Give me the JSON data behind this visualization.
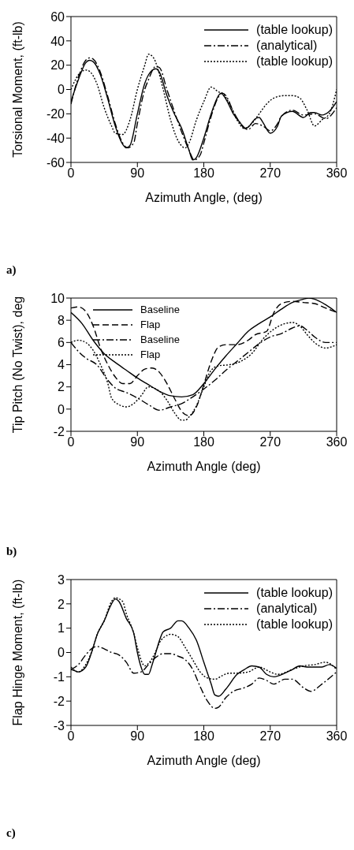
{
  "chart_data": [
    {
      "type": "line",
      "xlabel": "Azimuth Angle, (deg)",
      "ylabel": "Torsional Moment, (ft-lb)",
      "xlim": [
        0,
        360
      ],
      "xticks": [
        0,
        90,
        180,
        270,
        360
      ],
      "ylim": [
        -60,
        60
      ],
      "yticks": [
        -60,
        -40,
        -20,
        0,
        20,
        40,
        60
      ],
      "grid": false,
      "legend": "top right",
      "marker": "none",
      "annotations": [
        "a)"
      ],
      "series": [
        {
          "name": "(table lookup)",
          "color": "#000000",
          "line_style": "solid",
          "x": [
            0,
            10,
            20,
            25,
            30,
            40,
            50,
            60,
            70,
            75,
            80,
            90,
            100,
            105,
            115,
            120,
            130,
            140,
            150,
            160,
            165,
            170,
            180,
            190,
            200,
            203,
            210,
            220,
            230,
            235,
            240,
            250,
            255,
            260,
            270,
            280,
            285,
            300,
            315,
            325,
            330,
            340,
            350,
            360
          ],
          "values": [
            -10,
            8,
            22,
            24,
            23,
            12,
            -8,
            -30,
            -45,
            -48,
            -46,
            -20,
            5,
            12,
            17,
            14,
            -5,
            -20,
            -32,
            -50,
            -58,
            -56,
            -40,
            -20,
            -5,
            -3,
            -8,
            -20,
            -28,
            -32,
            -31,
            -24,
            -23,
            -27,
            -36,
            -30,
            -22,
            -18,
            -23,
            -19,
            -19,
            -21,
            -18,
            -10
          ]
        },
        {
          "name": "(analytical)",
          "color": "#000000",
          "line_style": "dashdot",
          "x": [
            0,
            10,
            20,
            25,
            30,
            40,
            50,
            60,
            70,
            77,
            85,
            90,
            100,
            105,
            115,
            120,
            130,
            140,
            150,
            160,
            167,
            175,
            180,
            190,
            200,
            205,
            210,
            220,
            230,
            240,
            250,
            260,
            270,
            280,
            285,
            300,
            315,
            330,
            345,
            360
          ],
          "values": [
            -12,
            10,
            24,
            26,
            25,
            14,
            -6,
            -28,
            -44,
            -48,
            -44,
            -28,
            0,
            8,
            19,
            18,
            0,
            -18,
            -35,
            -50,
            -58,
            -54,
            -44,
            -22,
            -6,
            -3,
            -5,
            -18,
            -28,
            -33,
            -28,
            -30,
            -34,
            -28,
            -22,
            -17,
            -21,
            -20,
            -24,
            -15
          ]
        },
        {
          "name": "(table lookup)",
          "color": "#000000",
          "line_style": "dotted",
          "x": [
            0,
            10,
            20,
            25,
            35,
            45,
            55,
            60,
            70,
            80,
            90,
            100,
            105,
            113,
            115,
            125,
            135,
            145,
            155,
            160,
            170,
            180,
            190,
            200,
            205,
            215,
            225,
            235,
            245,
            255,
            265,
            275,
            290,
            300,
            310,
            320,
            330,
            340,
            350,
            360
          ],
          "values": [
            0,
            12,
            16,
            15,
            5,
            -15,
            -30,
            -36,
            -37,
            -25,
            0,
            20,
            29,
            25,
            22,
            0,
            -25,
            -42,
            -48,
            -44,
            -25,
            -10,
            2,
            -2,
            -3,
            -12,
            -25,
            -32,
            -28,
            -20,
            -12,
            -7,
            -5,
            -5,
            -7,
            -17,
            -30,
            -25,
            -20,
            0
          ]
        }
      ]
    },
    {
      "type": "line",
      "xlabel": "Azimuth Angle (deg)",
      "ylabel": "Tip Pitch (No Twist), deg",
      "xlim": [
        0,
        360
      ],
      "xticks": [
        0,
        90,
        180,
        270,
        360
      ],
      "ylim": [
        -2,
        10
      ],
      "yticks": [
        -2,
        0,
        2,
        4,
        6,
        8,
        10
      ],
      "grid": false,
      "legend": "top",
      "marker": "none",
      "annotations": [
        "b)"
      ],
      "series": [
        {
          "name": "Baseline",
          "color": "#000000",
          "line_style": "solid",
          "x": [
            0,
            15,
            30,
            45,
            60,
            75,
            90,
            105,
            120,
            135,
            150,
            165,
            180,
            195,
            210,
            225,
            240,
            255,
            270,
            285,
            300,
            315,
            322,
            330,
            345,
            360
          ],
          "values": [
            8.7,
            7.7,
            6.2,
            5,
            4.2,
            3.5,
            2.8,
            2.2,
            1.6,
            1.2,
            1.1,
            1.3,
            2.3,
            3.6,
            4.8,
            5.9,
            7,
            7.7,
            8.3,
            9,
            9.6,
            9.9,
            10,
            9.9,
            9.4,
            8.7
          ]
        },
        {
          "name": "Flap",
          "color": "#000000",
          "line_style": "dashed",
          "x": [
            0,
            10,
            20,
            30,
            40,
            50,
            60,
            70,
            80,
            90,
            100,
            110,
            120,
            130,
            140,
            150,
            160,
            170,
            180,
            190,
            200,
            210,
            225,
            240,
            250,
            265,
            275,
            285,
            300,
            315,
            330,
            345,
            360
          ],
          "values": [
            9.1,
            9.2,
            8.8,
            7.5,
            5.5,
            4,
            2.9,
            2.3,
            2.3,
            3,
            3.6,
            3.7,
            3.3,
            2.3,
            1,
            -0.2,
            -0.6,
            0.2,
            2.2,
            4.3,
            5.6,
            5.8,
            5.8,
            6.2,
            6.7,
            7,
            8.7,
            9.5,
            9.7,
            9.6,
            9.5,
            9.1,
            8.7
          ]
        },
        {
          "name": "Baseline",
          "color": "#000000",
          "line_style": "dashdot",
          "x": [
            0,
            10,
            20,
            35,
            50,
            60,
            75,
            90,
            105,
            120,
            135,
            150,
            165,
            180,
            195,
            210,
            225,
            240,
            255,
            270,
            285,
            300,
            310,
            320,
            330,
            345,
            360
          ],
          "values": [
            6,
            5.2,
            4.6,
            4,
            2.6,
            1.9,
            1.5,
            1,
            0.4,
            -0.1,
            0.2,
            0.5,
            1.1,
            1.8,
            2.6,
            3.5,
            4.3,
            5.1,
            5.9,
            6.5,
            6.8,
            7.3,
            7.5,
            7.1,
            6.5,
            6,
            6
          ]
        },
        {
          "name": "Flap",
          "color": "#000000",
          "line_style": "dotted",
          "x": [
            0,
            10,
            20,
            30,
            40,
            50,
            55,
            65,
            75,
            85,
            95,
            105,
            120,
            130,
            140,
            150,
            155,
            160,
            170,
            180,
            190,
            200,
            215,
            230,
            245,
            260,
            275,
            290,
            300,
            310,
            320,
            330,
            345,
            360
          ],
          "values": [
            6,
            6.2,
            6,
            5.3,
            4,
            2.3,
            1,
            0.4,
            0.2,
            0.5,
            1.2,
            2,
            1.6,
            0.8,
            -0.3,
            -1,
            -1,
            -0.7,
            0.3,
            2,
            3.5,
            3.9,
            4,
            4.3,
            5,
            6.3,
            7.2,
            7.7,
            7.8,
            7.5,
            6.7,
            6,
            5.5,
            5.8
          ]
        }
      ]
    },
    {
      "type": "line",
      "xlabel": "Azimuth Angle (deg)",
      "ylabel": "Flap Hinge Moment, (ft-lb)",
      "xlim": [
        0,
        360
      ],
      "xticks": [
        0,
        90,
        180,
        270,
        360
      ],
      "ylim": [
        -3,
        3
      ],
      "yticks": [
        -3,
        -2,
        -1,
        0,
        1,
        2,
        3
      ],
      "grid": false,
      "legend": "top right",
      "marker": "none",
      "annotations": [
        "c)"
      ],
      "series": [
        {
          "name": "(table lookup)",
          "color": "#000000",
          "line_style": "solid",
          "x": [
            0,
            5,
            10,
            20,
            30,
            35,
            45,
            55,
            60,
            65,
            75,
            85,
            90,
            95,
            100,
            105,
            110,
            115,
            120,
            125,
            135,
            145,
            150,
            160,
            170,
            180,
            190,
            195,
            200,
            210,
            225,
            235,
            245,
            255,
            265,
            275,
            290,
            300,
            310,
            320,
            340,
            350,
            360
          ],
          "values": [
            -0.7,
            -0.75,
            -0.8,
            -0.6,
            0.2,
            0.7,
            1.3,
            2.0,
            2.2,
            2.1,
            1.4,
            0.8,
            0,
            -0.6,
            -0.9,
            -0.9,
            -0.5,
            0,
            0.5,
            0.85,
            1.0,
            1.3,
            1.3,
            1.0,
            0.5,
            -0.4,
            -1.3,
            -1.75,
            -1.8,
            -1.5,
            -0.9,
            -0.7,
            -0.55,
            -0.6,
            -0.9,
            -1.0,
            -0.85,
            -0.7,
            -0.55,
            -0.6,
            -0.6,
            -0.5,
            -0.65
          ]
        },
        {
          "name": "(analytical)",
          "color": "#000000",
          "line_style": "dashdot",
          "x": [
            0,
            10,
            20,
            30,
            35,
            45,
            55,
            65,
            75,
            85,
            95,
            105,
            115,
            125,
            135,
            145,
            155,
            165,
            175,
            185,
            195,
            200,
            210,
            220,
            235,
            245,
            255,
            265,
            275,
            290,
            300,
            315,
            325,
            340,
            360
          ],
          "values": [
            -0.7,
            -0.5,
            -0.1,
            0.2,
            0.25,
            0.15,
            0.0,
            -0.1,
            -0.4,
            -0.85,
            -0.8,
            -0.5,
            -0.2,
            -0.05,
            -0.05,
            -0.15,
            -0.3,
            -0.7,
            -1.4,
            -2.0,
            -2.3,
            -2.25,
            -1.85,
            -1.6,
            -1.45,
            -1.3,
            -1.05,
            -1.15,
            -1.3,
            -1.1,
            -1.1,
            -1.45,
            -1.6,
            -1.3,
            -0.8
          ]
        },
        {
          "name": "(table lookup)",
          "color": "#000000",
          "line_style": "dotted",
          "x": [
            0,
            10,
            20,
            30,
            35,
            45,
            55,
            60,
            70,
            75,
            85,
            90,
            100,
            105,
            115,
            120,
            130,
            135,
            145,
            155,
            165,
            175,
            185,
            195,
            205,
            215,
            225,
            240,
            255,
            270,
            280,
            300,
            315,
            330,
            345,
            360
          ],
          "values": [
            -0.6,
            -0.8,
            -0.5,
            0.2,
            0.7,
            1.3,
            2.1,
            2.25,
            2.1,
            1.6,
            0.8,
            0.2,
            -0.55,
            -0.45,
            0.05,
            0.4,
            0.7,
            0.75,
            0.65,
            0.2,
            -0.3,
            -0.8,
            -1.05,
            -1.1,
            -0.95,
            -0.85,
            -0.85,
            -0.8,
            -0.6,
            -0.8,
            -0.9,
            -0.7,
            -0.55,
            -0.5,
            -0.4,
            -0.7
          ]
        }
      ]
    }
  ]
}
